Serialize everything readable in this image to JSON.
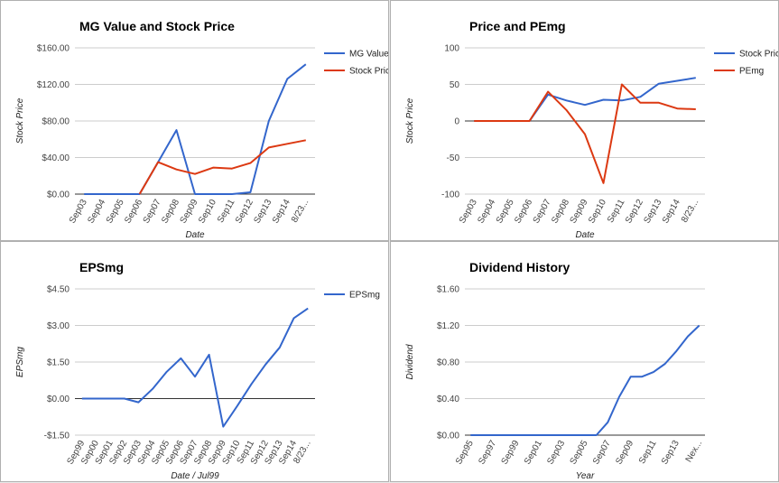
{
  "chart_data": [
    {
      "type": "line",
      "title": "MG Value and Stock Price",
      "y_label": "Stock Price",
      "x_label": "Date",
      "categories": [
        "Sep03",
        "Sep04",
        "Sep05",
        "Sep06",
        "Sep07",
        "Sep08",
        "Sep09",
        "Sep10",
        "Sep11",
        "Sep12",
        "Sep13",
        "Sep14",
        "8/23..."
      ],
      "series": [
        {
          "name": "MG Value",
          "color": "#3366cc",
          "values": [
            0,
            0,
            0,
            0,
            35,
            70,
            0,
            0,
            0,
            2,
            80,
            126,
            142
          ]
        },
        {
          "name": "Stock Price",
          "color": "#dc3912",
          "values": [
            null,
            null,
            null,
            0,
            35,
            27,
            22,
            29,
            28,
            34,
            51,
            55,
            59
          ]
        }
      ],
      "ylim": [
        0,
        160
      ],
      "yticks": [
        {
          "value": 0,
          "label": "$0.00"
        },
        {
          "value": 40,
          "label": "$40.00"
        },
        {
          "value": 80,
          "label": "$80.00"
        },
        {
          "value": 120,
          "label": "$120.00"
        },
        {
          "value": 160,
          "label": "$160.00"
        }
      ],
      "grid": true,
      "legend": "right"
    },
    {
      "type": "line",
      "title": "Price and PEmg",
      "y_label": "Stock Price",
      "x_label": "Date",
      "categories": [
        "Sep03",
        "Sep04",
        "Sep05",
        "Sep06",
        "Sep07",
        "Sep08",
        "Sep09",
        "Sep10",
        "Sep11",
        "Sep12",
        "Sep13",
        "Sep14",
        "8/23..."
      ],
      "series": [
        {
          "name": "Stock Price",
          "color": "#3366cc",
          "values": [
            0,
            0,
            0,
            0,
            36,
            28,
            22,
            29,
            28,
            33,
            51,
            55,
            59
          ]
        },
        {
          "name": "PEmg",
          "color": "#dc3912",
          "values": [
            0,
            0,
            0,
            0,
            40,
            15,
            -18,
            -85,
            50,
            25,
            25,
            17,
            16
          ]
        }
      ],
      "ylim": [
        -100,
        100
      ],
      "yticks": [
        -100,
        -50,
        0,
        50,
        100
      ],
      "grid": true,
      "legend": "right"
    },
    {
      "type": "line",
      "title": "EPSmg",
      "y_label": "EPSmg",
      "x_label": "Date / Jul99",
      "categories": [
        "Sep99",
        "Sep00",
        "Sep01",
        "Sep02",
        "Sep03",
        "Sep04",
        "Sep05",
        "Sep06",
        "Sep07",
        "Sep08",
        "Sep09",
        "Sep10",
        "Sep11",
        "Sep12",
        "Sep13",
        "Sep14",
        "8/23..."
      ],
      "series": [
        {
          "name": "EPSmg",
          "color": "#3366cc",
          "values": [
            0,
            0,
            0,
            0,
            -0.15,
            0.4,
            1.1,
            1.65,
            0.9,
            1.8,
            -1.15,
            -0.3,
            0.6,
            1.4,
            2.1,
            3.3,
            3.7
          ]
        }
      ],
      "ylim": [
        -1.5,
        4.5
      ],
      "yticks": [
        {
          "value": -1.5,
          "label": "-$1.50"
        },
        {
          "value": 0,
          "label": "$0.00"
        },
        {
          "value": 1.5,
          "label": "$1.50"
        },
        {
          "value": 3,
          "label": "$3.00"
        },
        {
          "value": 4.5,
          "label": "$4.50"
        }
      ],
      "grid": true,
      "legend": "right"
    },
    {
      "type": "line",
      "title": "Dividend History",
      "y_label": "Dividend",
      "x_label": "Year",
      "categories": [
        "Sep95",
        null,
        "Sep97",
        null,
        "Sep99",
        null,
        "Sep01",
        null,
        "Sep03",
        null,
        "Sep05",
        null,
        "Sep07",
        null,
        "Sep09",
        null,
        "Sep11",
        null,
        "Sep13",
        null,
        "Nex..."
      ],
      "series": [
        {
          "color": "#3366cc",
          "values": [
            0,
            0,
            0,
            0,
            0,
            0,
            0,
            0,
            0,
            0,
            0,
            0,
            0.14,
            0.42,
            0.64,
            0.64,
            0.69,
            0.78,
            0.92,
            1.08,
            1.2
          ]
        }
      ],
      "ylim": [
        0,
        1.6
      ],
      "yticks": [
        {
          "value": 0,
          "label": "$0.00"
        },
        {
          "value": 0.4,
          "label": "$0.40"
        },
        {
          "value": 0.8,
          "label": "$0.80"
        },
        {
          "value": 1.2,
          "label": "$1.20"
        },
        {
          "value": 1.6,
          "label": "$1.60"
        }
      ],
      "grid": true
    }
  ]
}
